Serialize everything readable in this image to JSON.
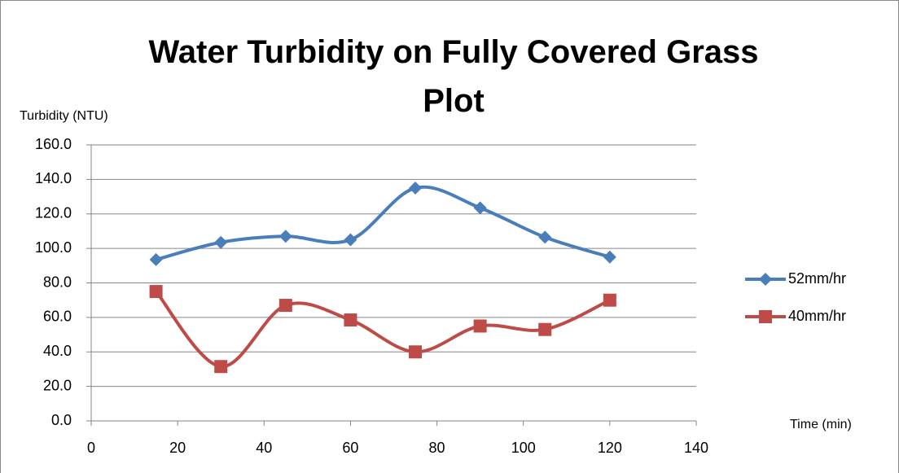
{
  "chart_data": {
    "type": "scatter-smooth",
    "title": "Water Turbidity on Fully Covered Grass Plot",
    "y_label": "Turbidity (NTU)",
    "x_label": "Time (min)",
    "x": [
      15,
      30,
      45,
      60,
      75,
      90,
      105,
      120
    ],
    "series": [
      {
        "name": "52mm/hr",
        "color": "#4a7ebb",
        "marker": "diamond",
        "values": [
          93.5,
          103.5,
          107,
          105,
          135,
          123.5,
          106.5,
          95
        ]
      },
      {
        "name": "40mm/hr",
        "color": "#be4b48",
        "marker": "square",
        "values": [
          75,
          31.5,
          67,
          58.5,
          40,
          55,
          53,
          70
        ]
      }
    ],
    "xlim": [
      0,
      140
    ],
    "xticks": [
      0,
      20,
      40,
      60,
      80,
      100,
      120,
      140
    ],
    "ylim": [
      0,
      160
    ],
    "yticks": [
      {
        "value": 0,
        "label": "0.0"
      },
      {
        "value": 20,
        "label": "20.0"
      },
      {
        "value": 40,
        "label": "40.0"
      },
      {
        "value": 60,
        "label": "60.0"
      },
      {
        "value": 80,
        "label": "80.0"
      },
      {
        "value": 100,
        "label": "100.0"
      },
      {
        "value": 120,
        "label": "120.0"
      },
      {
        "value": 140,
        "label": "140.0"
      },
      {
        "value": 160,
        "label": "160.0"
      }
    ],
    "grid": true,
    "legend": "right"
  }
}
